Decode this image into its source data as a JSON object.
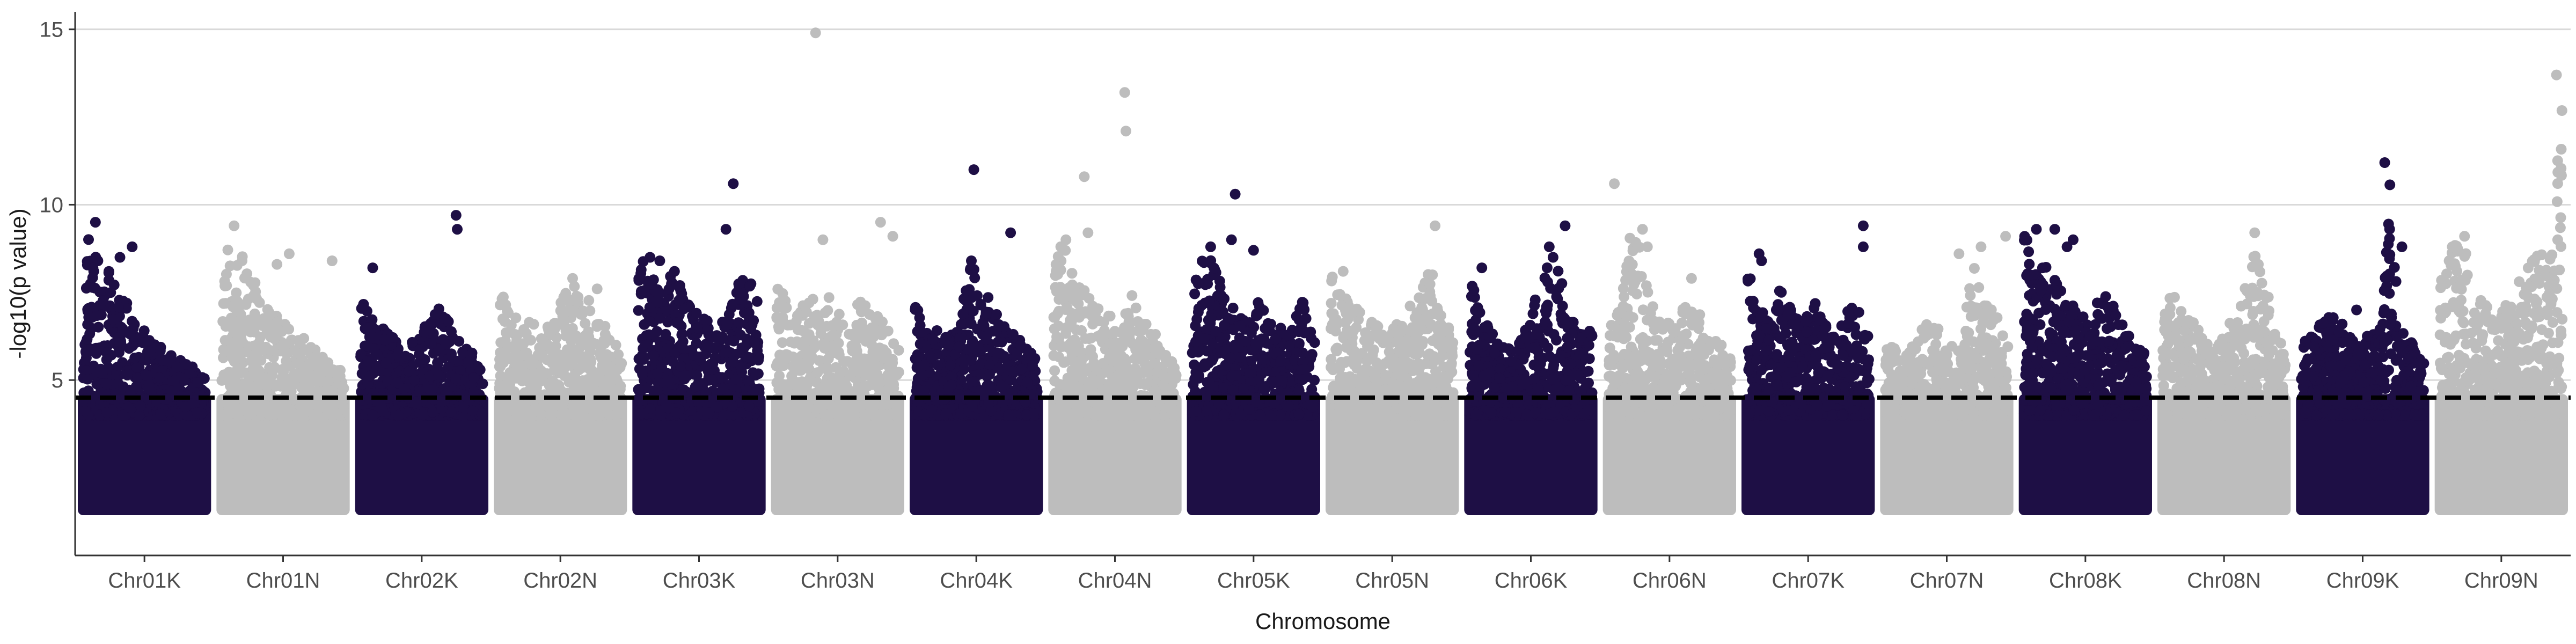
{
  "chart_data": {
    "type": "scatter",
    "title": "",
    "xlabel": "Chromosome",
    "ylabel": "-log10(p value)",
    "ylim": [
      0,
      15.5
    ],
    "yticks": [
      5,
      10,
      15
    ],
    "grid": true,
    "legend": "none",
    "threshold": 4.5,
    "colors": {
      "dark": "#1e0f45",
      "light": "#bdbdbd",
      "threshold": "#000000",
      "grid": "#d9d9d9",
      "axis": "#333333"
    },
    "categories": [
      "Chr01K",
      "Chr01N",
      "Chr02K",
      "Chr02N",
      "Chr03K",
      "Chr03N",
      "Chr04K",
      "Chr04N",
      "Chr05K",
      "Chr05N",
      "Chr06K",
      "Chr06N",
      "Chr07K",
      "Chr07N",
      "Chr08K",
      "Chr08N",
      "Chr09K",
      "Chr09N"
    ],
    "series": [
      {
        "chromosome": "Chr01K",
        "color": "dark",
        "peaks": [
          9.5,
          8.8,
          8.5,
          8.3,
          7.5,
          7.2,
          6.6,
          6.3,
          6.0,
          5.8,
          5.6,
          5.5,
          5.3,
          5.1
        ],
        "top_outliers": [
          [
            0.1,
            9.5
          ],
          [
            0.4,
            8.8
          ],
          [
            0.12,
            8.4
          ],
          [
            0.3,
            8.5
          ],
          [
            0.08,
            8.2
          ]
        ]
      },
      {
        "chromosome": "Chr01N",
        "color": "light",
        "peaks": [
          9.4,
          8.4,
          8.6,
          7.8,
          7.3,
          6.8,
          6.5,
          6.3,
          6.0,
          5.7,
          5.5,
          5.2
        ],
        "top_outliers": [
          [
            0.1,
            9.4
          ],
          [
            0.55,
            8.6
          ],
          [
            0.45,
            8.3
          ],
          [
            0.9,
            8.4
          ]
        ]
      },
      {
        "chromosome": "Chr02K",
        "color": "dark",
        "peaks": [
          8.2,
          6.9,
          6.5,
          6.2,
          5.9,
          6.3,
          6.6,
          7.1,
          6.8,
          6.0,
          5.8,
          5.4
        ],
        "top_outliers": [
          [
            0.1,
            8.2
          ],
          [
            0.78,
            9.7
          ],
          [
            0.79,
            9.3
          ]
        ]
      },
      {
        "chromosome": "Chr02N",
        "color": "light",
        "peaks": [
          7.6,
          7.0,
          6.6,
          6.8,
          6.3,
          6.9,
          7.5,
          7.8,
          7.3,
          6.8,
          6.4,
          5.7
        ],
        "top_outliers": [
          [
            0.6,
            7.9
          ],
          [
            0.8,
            7.6
          ]
        ]
      },
      {
        "chromosome": "Chr03K",
        "color": "dark",
        "peaks": [
          8.5,
          8.3,
          7.6,
          8.1,
          7.6,
          7.2,
          6.8,
          6.5,
          6.9,
          7.8,
          8.0,
          7.1
        ],
        "top_outliers": [
          [
            0.1,
            8.5
          ],
          [
            0.18,
            8.4
          ],
          [
            0.3,
            8.1
          ],
          [
            0.78,
            10.6
          ],
          [
            0.72,
            9.3
          ]
        ]
      },
      {
        "chromosome": "Chr03N",
        "color": "light",
        "peaks": [
          8.3,
          7.3,
          7.0,
          7.5,
          6.8,
          7.8,
          6.6,
          7.2,
          7.4,
          6.9,
          6.5,
          5.9
        ],
        "top_outliers": [
          [
            0.32,
            14.9
          ],
          [
            0.38,
            9.0
          ],
          [
            0.85,
            9.5
          ],
          [
            0.95,
            9.1
          ]
        ]
      },
      {
        "chromosome": "Chr04K",
        "color": "dark",
        "peaks": [
          7.2,
          6.8,
          6.4,
          6.2,
          6.8,
          8.4,
          7.6,
          7.2,
          6.6,
          6.3,
          6.0,
          5.5
        ],
        "top_outliers": [
          [
            0.48,
            11.0
          ],
          [
            0.78,
            9.2
          ],
          [
            0.46,
            8.4
          ]
        ]
      },
      {
        "chromosome": "Chr04N",
        "color": "light",
        "peaks": [
          9.0,
          8.9,
          7.9,
          7.5,
          7.3,
          6.9,
          6.5,
          7.6,
          7.0,
          6.4,
          6.0,
          5.6
        ],
        "top_outliers": [
          [
            0.25,
            10.8
          ],
          [
            0.1,
            9.0
          ],
          [
            0.28,
            9.2
          ],
          [
            0.58,
            13.2
          ],
          [
            0.59,
            12.1
          ]
        ]
      },
      {
        "chromosome": "Chr05K",
        "color": "dark",
        "peaks": [
          7.8,
          8.8,
          8.6,
          7.4,
          7.0,
          6.8,
          7.3,
          6.9,
          6.6,
          7.2,
          7.5,
          6.1
        ],
        "top_outliers": [
          [
            0.35,
            10.3
          ],
          [
            0.32,
            9.0
          ],
          [
            0.15,
            8.8
          ],
          [
            0.5,
            8.7
          ]
        ]
      },
      {
        "chromosome": "Chr05N",
        "color": "light",
        "peaks": [
          8.1,
          7.5,
          7.1,
          6.9,
          6.6,
          6.4,
          6.8,
          7.2,
          7.5,
          8.3,
          7.0,
          6.2
        ],
        "top_outliers": [
          [
            0.1,
            8.1
          ],
          [
            0.85,
            9.4
          ]
        ]
      },
      {
        "chromosome": "Chr06K",
        "color": "dark",
        "peaks": [
          8.2,
          6.9,
          6.4,
          6.0,
          5.8,
          6.5,
          7.4,
          8.8,
          8.2,
          6.9,
          6.3,
          6.6
        ],
        "top_outliers": [
          [
            0.1,
            8.2
          ],
          [
            0.65,
            8.8
          ],
          [
            0.78,
            9.4
          ]
        ]
      },
      {
        "chromosome": "Chr06N",
        "color": "light",
        "peaks": [
          7.6,
          7.0,
          9.3,
          8.8,
          7.1,
          6.8,
          6.5,
          7.9,
          7.0,
          6.4,
          6.1,
          5.6
        ],
        "top_outliers": [
          [
            0.05,
            10.6
          ],
          [
            0.28,
            9.3
          ],
          [
            0.32,
            8.8
          ],
          [
            0.68,
            7.9
          ]
        ]
      },
      {
        "chromosome": "Chr07K",
        "color": "dark",
        "peaks": [
          8.6,
          7.2,
          6.8,
          7.7,
          7.1,
          6.6,
          7.5,
          6.9,
          6.4,
          7.0,
          7.2,
          6.3
        ],
        "top_outliers": [
          [
            0.1,
            8.6
          ],
          [
            0.12,
            8.4
          ],
          [
            0.95,
            9.4
          ],
          [
            0.95,
            8.8
          ]
        ]
      },
      {
        "chromosome": "Chr07N",
        "color": "light",
        "peaks": [
          6.2,
          6.0,
          5.8,
          6.3,
          6.8,
          6.5,
          6.0,
          6.6,
          8.6,
          7.2,
          6.9,
          6.0
        ],
        "top_outliers": [
          [
            0.6,
            8.6
          ],
          [
            0.78,
            8.8
          ],
          [
            0.98,
            9.1
          ]
        ]
      },
      {
        "chromosome": "Chr08K",
        "color": "dark",
        "peaks": [
          9.3,
          8.8,
          8.2,
          7.8,
          7.4,
          6.9,
          6.6,
          7.7,
          7.2,
          6.5,
          6.0,
          5.7
        ],
        "top_outliers": [
          [
            0.1,
            9.3
          ],
          [
            0.25,
            9.3
          ],
          [
            0.35,
            8.8
          ],
          [
            0.4,
            9.0
          ],
          [
            0.15,
            8.2
          ]
        ]
      },
      {
        "chromosome": "Chr08N",
        "color": "light",
        "peaks": [
          7.3,
          7.5,
          6.9,
          6.6,
          6.2,
          6.0,
          6.8,
          7.2,
          9.2,
          8.3,
          6.9,
          6.0
        ],
        "top_outliers": [
          [
            0.75,
            9.2
          ],
          [
            0.78,
            8.3
          ]
        ]
      },
      {
        "chromosome": "Chr09K",
        "color": "dark",
        "peaks": [
          6.2,
          6.4,
          6.9,
          7.0,
          6.5,
          6.1,
          6.3,
          6.5,
          11.2,
          6.4,
          6.2,
          5.5
        ],
        "top_outliers": [
          [
            0.68,
            11.2
          ],
          [
            0.82,
            8.8
          ],
          [
            0.45,
            7.0
          ]
        ]
      },
      {
        "chromosome": "Chr09N",
        "color": "light",
        "peaks": [
          7.8,
          8.8,
          9.1,
          7.6,
          7.2,
          6.8,
          7.4,
          7.9,
          8.4,
          8.7,
          9.0,
          13.7
        ],
        "top_outliers": [
          [
            0.1,
            8.8
          ],
          [
            0.2,
            9.1
          ],
          [
            0.95,
            13.7
          ],
          [
            0.96,
            9.0
          ]
        ]
      }
    ]
  }
}
